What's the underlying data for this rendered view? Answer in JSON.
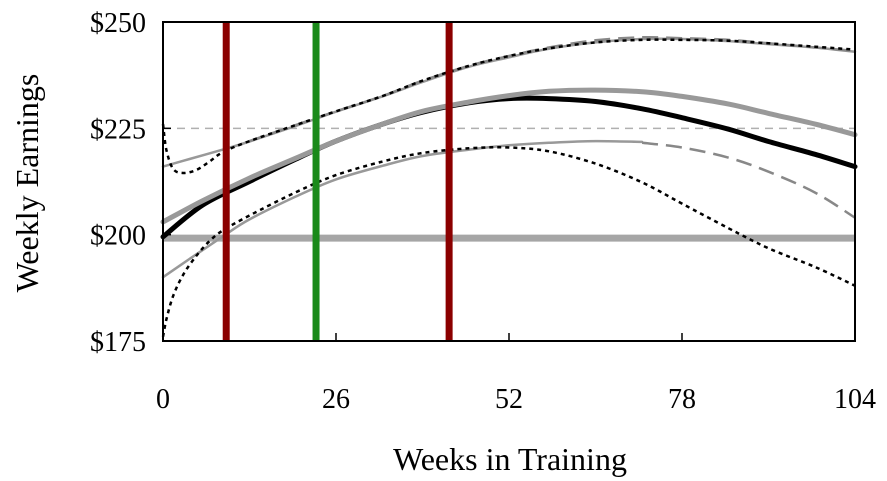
{
  "chart_data": {
    "type": "line",
    "title": "",
    "xlabel": "Weeks in Training",
    "ylabel": "Weekly Earnings",
    "xlim": [
      0,
      104
    ],
    "ylim": [
      175,
      250
    ],
    "x_ticks": [
      0,
      26,
      52,
      78,
      104
    ],
    "x_tick_labels": [
      "0",
      "26",
      "52",
      "78",
      "104"
    ],
    "y_ticks": [
      175,
      200,
      225,
      250
    ],
    "y_tick_labels": [
      "$175",
      "$200",
      "$225",
      "$250"
    ],
    "grid": false,
    "legend": "none",
    "reference_lines": [
      {
        "orientation": "horizontal",
        "y": 225,
        "color": "#b0b0b0",
        "style": "dashed"
      },
      {
        "orientation": "horizontal",
        "y": 199.2,
        "color": "#c0c0c0",
        "style": "dashed"
      },
      {
        "orientation": "horizontal",
        "y": 199.2,
        "color": "#a6a6a6",
        "style": "solid-thick"
      },
      {
        "orientation": "vertical",
        "x": 9.5,
        "color": "#8b0000"
      },
      {
        "orientation": "vertical",
        "x": 23,
        "color": "#1a8a1a"
      },
      {
        "orientation": "vertical",
        "x": 43,
        "color": "#8b0000"
      }
    ],
    "series": [
      {
        "style": "solid-thick",
        "color": "#000000",
        "x": [
          0,
          6,
          13,
          20,
          26,
          33,
          39,
          46,
          52,
          58,
          65,
          72,
          78,
          85,
          91,
          98,
          104
        ],
        "y": [
          199.5,
          207.0,
          212.5,
          217.8,
          222.0,
          226.0,
          228.8,
          231.0,
          232.0,
          232.0,
          231.3,
          229.6,
          227.5,
          224.8,
          221.9,
          218.9,
          216.0
        ]
      },
      {
        "style": "solid-thick",
        "color": "#999999",
        "x": [
          0,
          6,
          13,
          20,
          26,
          33,
          39,
          46,
          52,
          58,
          65,
          72,
          78,
          85,
          91,
          98,
          104
        ],
        "y": [
          203.0,
          208.0,
          213.3,
          218.0,
          222.0,
          226.0,
          229.0,
          231.2,
          232.7,
          233.7,
          234.0,
          233.6,
          232.5,
          230.7,
          228.5,
          226.0,
          223.5
        ]
      },
      {
        "style": "solid-thin",
        "color": "#999999",
        "x": [
          0,
          4,
          9,
          13,
          20,
          26,
          33,
          39,
          46,
          52,
          58,
          65,
          72,
          78,
          85,
          91,
          98,
          104
        ],
        "y": [
          216.0,
          217.8,
          220.0,
          221.9,
          225.6,
          228.9,
          232.5,
          235.9,
          239.5,
          241.7,
          243.7,
          245.2,
          246.0,
          246.0,
          245.5,
          244.8,
          244.0,
          243.0
        ]
      },
      {
        "style": "solid-thin",
        "color": "#999999",
        "x": [
          0,
          4,
          9,
          13,
          20,
          26,
          33,
          39,
          46,
          52,
          58,
          65,
          72
        ],
        "y": [
          190.0,
          194.3,
          199.6,
          203.6,
          209.0,
          213.0,
          216.2,
          218.5,
          220.0,
          221.0,
          221.6,
          222.0,
          221.8
        ]
      },
      {
        "style": "dashed",
        "color": "#888888",
        "x": [
          72,
          78,
          85,
          91,
          98,
          104
        ],
        "y": [
          221.6,
          220.5,
          218.1,
          214.8,
          209.9,
          204.0
        ]
      },
      {
        "style": "dashed",
        "color": "#888888",
        "x": [
          13,
          20,
          26,
          33,
          39,
          46,
          52,
          58,
          65,
          72,
          78,
          85,
          91,
          98,
          104
        ],
        "y": [
          222.0,
          225.8,
          229.0,
          232.6,
          236.2,
          239.7,
          242.0,
          244.0,
          245.7,
          246.4,
          246.2,
          245.8,
          245.0,
          244.0,
          243.2
        ]
      },
      {
        "style": "dotted",
        "color": "#000000",
        "x": [
          0,
          0.5,
          1.5,
          3,
          5,
          7,
          9,
          13,
          20,
          26,
          33,
          39,
          46,
          52,
          58,
          65,
          72,
          78,
          85,
          91,
          98,
          104
        ],
        "y": [
          226.0,
          220.0,
          215.5,
          214.5,
          215.2,
          217.2,
          219.4,
          222.0,
          225.8,
          229.0,
          232.6,
          236.2,
          239.7,
          242.0,
          243.8,
          245.2,
          245.8,
          245.8,
          245.6,
          245.0,
          244.2,
          243.5
        ]
      },
      {
        "style": "dotted",
        "color": "#000000",
        "x": [
          0,
          0.5,
          1.5,
          3,
          5,
          7,
          9,
          13,
          20,
          26,
          33,
          39,
          46,
          52,
          58,
          65,
          72,
          78,
          85,
          91,
          98,
          104
        ],
        "y": [
          176.0,
          180.0,
          185.5,
          190.5,
          195.0,
          198.5,
          201.0,
          204.5,
          210.0,
          214.0,
          217.2,
          219.2,
          220.3,
          220.5,
          219.6,
          216.7,
          212.3,
          207.3,
          201.5,
          196.8,
          192.4,
          188.0
        ]
      }
    ]
  }
}
